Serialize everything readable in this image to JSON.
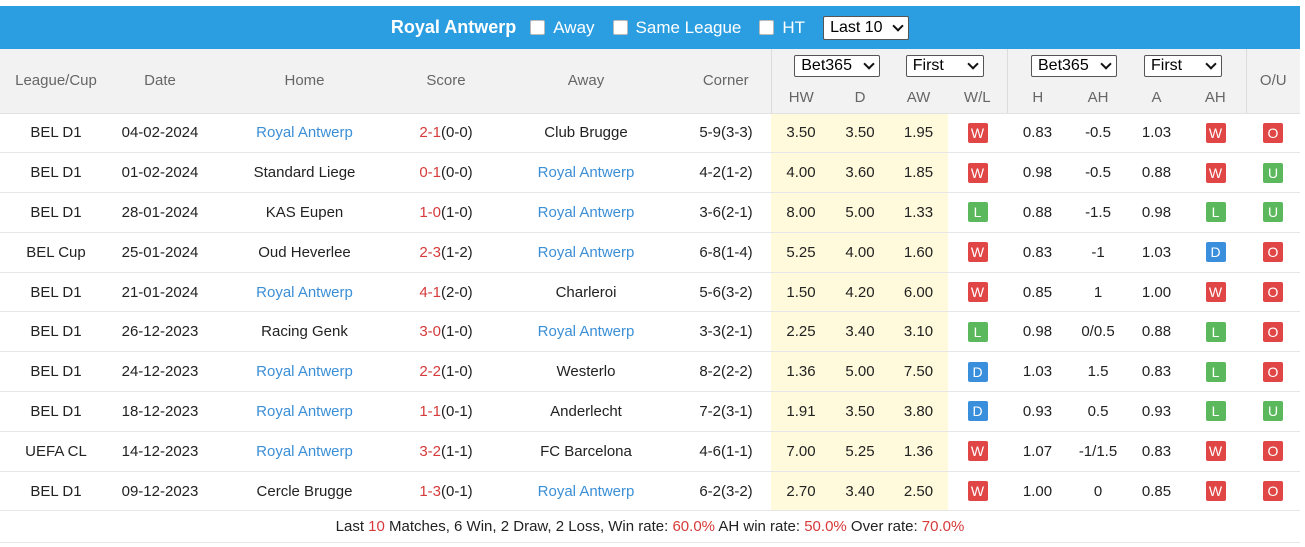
{
  "topbar": {
    "team": "Royal Antwerp",
    "away_label": "Away",
    "same_league_label": "Same League",
    "ht_label": "HT",
    "last_select": "Last 10"
  },
  "header": {
    "league": "League/Cup",
    "date": "Date",
    "home": "Home",
    "score": "Score",
    "away": "Away",
    "corner": "Corner",
    "odds1_select": "Bet365",
    "odds1_period": "First",
    "odds2_select": "Bet365",
    "odds2_period": "First",
    "ou": "O/U",
    "hw": "HW",
    "d": "D",
    "aw": "AW",
    "wl": "W/L",
    "h": "H",
    "ah": "AH",
    "a": "A",
    "ah2": "AH"
  },
  "colors": {
    "topbar": "#2a9ee0",
    "team_blue": "#3b8fd6",
    "score_red": "#d63a3a",
    "odds_bg": "#fffadc",
    "badge_red": "#e04646",
    "badge_green": "#5cb85c",
    "badge_blue": "#3a8fdc"
  },
  "rows": [
    {
      "league": "BEL D1",
      "date": "04-02-2024",
      "home": "Royal Antwerp",
      "home_team": true,
      "score_ft": "2-1",
      "score_ht": "(0-0)",
      "away": "Club Brugge",
      "away_team": false,
      "corner": "5-9(3-3)",
      "hw": "3.50",
      "d": "3.50",
      "aw": "1.95",
      "wl": "W",
      "h": "0.83",
      "ah": "-0.5",
      "a": "1.03",
      "ah_res": "W",
      "ou": "O"
    },
    {
      "league": "BEL D1",
      "date": "01-02-2024",
      "home": "Standard Liege",
      "home_team": false,
      "score_ft": "0-1",
      "score_ht": "(0-0)",
      "away": "Royal Antwerp",
      "away_team": true,
      "corner": "4-2(1-2)",
      "hw": "4.00",
      "d": "3.60",
      "aw": "1.85",
      "wl": "W",
      "h": "0.98",
      "ah": "-0.5",
      "a": "0.88",
      "ah_res": "W",
      "ou": "U"
    },
    {
      "league": "BEL D1",
      "date": "28-01-2024",
      "home": "KAS Eupen",
      "home_team": false,
      "score_ft": "1-0",
      "score_ht": "(1-0)",
      "away": "Royal Antwerp",
      "away_team": true,
      "corner": "3-6(2-1)",
      "hw": "8.00",
      "d": "5.00",
      "aw": "1.33",
      "wl": "L",
      "h": "0.88",
      "ah": "-1.5",
      "a": "0.98",
      "ah_res": "L",
      "ou": "U"
    },
    {
      "league": "BEL Cup",
      "date": "25-01-2024",
      "home": "Oud Heverlee",
      "home_team": false,
      "score_ft": "2-3",
      "score_ht": "(1-2)",
      "away": "Royal Antwerp",
      "away_team": true,
      "corner": "6-8(1-4)",
      "hw": "5.25",
      "d": "4.00",
      "aw": "1.60",
      "wl": "W",
      "h": "0.83",
      "ah": "-1",
      "a": "1.03",
      "ah_res": "D",
      "ou": "O"
    },
    {
      "league": "BEL D1",
      "date": "21-01-2024",
      "home": "Royal Antwerp",
      "home_team": true,
      "score_ft": "4-1",
      "score_ht": "(2-0)",
      "away": "Charleroi",
      "away_team": false,
      "corner": "5-6(3-2)",
      "hw": "1.50",
      "d": "4.20",
      "aw": "6.00",
      "wl": "W",
      "h": "0.85",
      "ah": "1",
      "a": "1.00",
      "ah_res": "W",
      "ou": "O"
    },
    {
      "league": "BEL D1",
      "date": "26-12-2023",
      "home": "Racing Genk",
      "home_team": false,
      "score_ft": "3-0",
      "score_ht": "(1-0)",
      "away": "Royal Antwerp",
      "away_team": true,
      "corner": "3-3(2-1)",
      "hw": "2.25",
      "d": "3.40",
      "aw": "3.10",
      "wl": "L",
      "h": "0.98",
      "ah": "0/0.5",
      "a": "0.88",
      "ah_res": "L",
      "ou": "O"
    },
    {
      "league": "BEL D1",
      "date": "24-12-2023",
      "home": "Royal Antwerp",
      "home_team": true,
      "score_ft": "2-2",
      "score_ht": "(1-0)",
      "away": "Westerlo",
      "away_team": false,
      "corner": "8-2(2-2)",
      "hw": "1.36",
      "d": "5.00",
      "aw": "7.50",
      "wl": "D",
      "h": "1.03",
      "ah": "1.5",
      "a": "0.83",
      "ah_res": "L",
      "ou": "O"
    },
    {
      "league": "BEL D1",
      "date": "18-12-2023",
      "home": "Royal Antwerp",
      "home_team": true,
      "score_ft": "1-1",
      "score_ht": "(0-1)",
      "away": "Anderlecht",
      "away_team": false,
      "corner": "7-2(3-1)",
      "hw": "1.91",
      "d": "3.50",
      "aw": "3.80",
      "wl": "D",
      "h": "0.93",
      "ah": "0.5",
      "a": "0.93",
      "ah_res": "L",
      "ou": "U"
    },
    {
      "league": "UEFA CL",
      "date": "14-12-2023",
      "home": "Royal Antwerp",
      "home_team": true,
      "score_ft": "3-2",
      "score_ht": "(1-1)",
      "away": "FC Barcelona",
      "away_team": false,
      "corner": "4-6(1-1)",
      "hw": "7.00",
      "d": "5.25",
      "aw": "1.36",
      "wl": "W",
      "h": "1.07",
      "ah": "-1/1.5",
      "a": "0.83",
      "ah_res": "W",
      "ou": "O"
    },
    {
      "league": "BEL D1",
      "date": "09-12-2023",
      "home": "Cercle Brugge",
      "home_team": false,
      "score_ft": "1-3",
      "score_ht": "(0-1)",
      "away": "Royal Antwerp",
      "away_team": true,
      "corner": "6-2(3-2)",
      "hw": "2.70",
      "d": "3.40",
      "aw": "2.50",
      "wl": "W",
      "h": "1.00",
      "ah": "0",
      "a": "0.85",
      "ah_res": "W",
      "ou": "O"
    }
  ],
  "summary": {
    "prefix": "Last ",
    "count": "10",
    "middle": " Matches, 6 Win, 2 Draw, 2 Loss, Win rate: ",
    "win_rate": "60.0%",
    "ah_label": " AH win rate: ",
    "ah_rate": "50.0%",
    "over_label": " Over rate: ",
    "over_rate": "70.0%"
  }
}
